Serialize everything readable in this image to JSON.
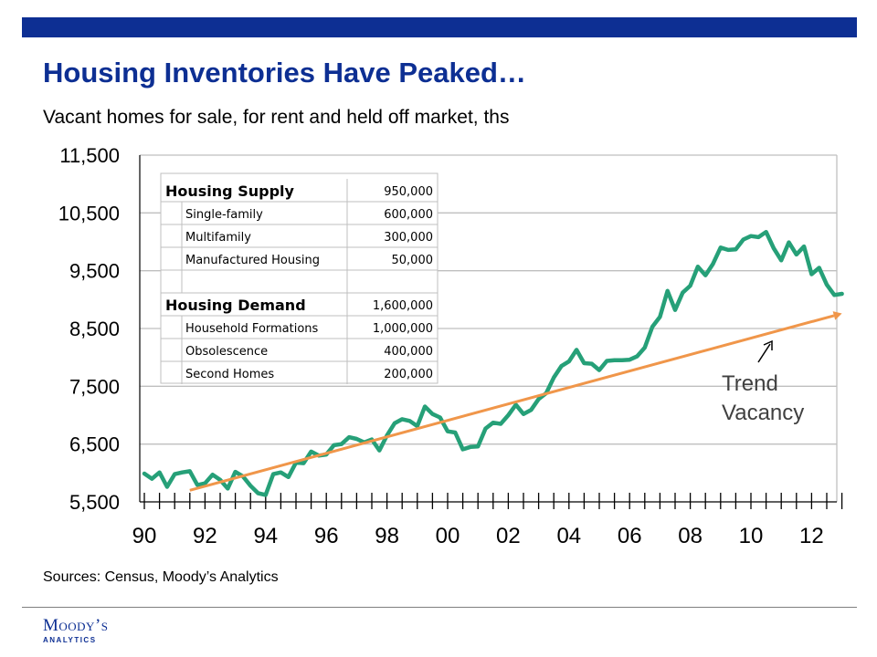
{
  "title": "Housing Inventories Have Peaked…",
  "subtitle": "Vacant homes for sale, for rent and held off market, ths",
  "sources": "Sources: Census, Moody’s Analytics",
  "logo": {
    "main": "Moody’s",
    "sub": "ANALYTICS"
  },
  "colors": {
    "brand": "#0d2f93",
    "series": "#26a078",
    "trend": "#f0964a",
    "grid": "#bfbfbf"
  },
  "trend_label": [
    "Trend",
    "Vacancy"
  ],
  "table": {
    "rows": [
      {
        "label": "Housing Supply",
        "value": "950,000",
        "heading": true
      },
      {
        "label": "Single-family",
        "value": "600,000",
        "heading": false
      },
      {
        "label": "Multifamily",
        "value": "300,000",
        "heading": false
      },
      {
        "label": "Manufactured Housing",
        "value": "50,000",
        "heading": false
      },
      {
        "label": "",
        "value": "",
        "heading": false
      },
      {
        "label": "Housing Demand",
        "value": "1,600,000",
        "heading": true
      },
      {
        "label": "Household Formations",
        "value": "1,000,000",
        "heading": false
      },
      {
        "label": "Obsolescence",
        "value": "400,000",
        "heading": false
      },
      {
        "label": "Second Homes",
        "value": "200,000",
        "heading": false
      }
    ]
  },
  "chart_data": {
    "type": "line",
    "title": "",
    "xlabel": "",
    "ylabel": "",
    "ylim": [
      5500,
      11500
    ],
    "xlim": [
      1990,
      2012.75
    ],
    "yticks": [
      5500,
      6500,
      7500,
      8500,
      9500,
      10500,
      11500
    ],
    "ytick_labels": [
      "5,500",
      "6,500",
      "7,500",
      "8,500",
      "9,500",
      "10,500",
      "11,500"
    ],
    "xticks": [
      1990,
      1992,
      1994,
      1996,
      1998,
      2000,
      2002,
      2004,
      2006,
      2008,
      2010,
      2012
    ],
    "xtick_labels": [
      "90",
      "92",
      "94",
      "96",
      "98",
      "00",
      "02",
      "04",
      "06",
      "08",
      "10",
      "12"
    ],
    "grid": true,
    "series": [
      {
        "values": [
          [
            1990.0,
            5990
          ],
          [
            1990.25,
            5900
          ],
          [
            1990.5,
            6010
          ],
          [
            1990.75,
            5760
          ],
          [
            1991.0,
            5980
          ],
          [
            1991.25,
            6010
          ],
          [
            1991.5,
            6030
          ],
          [
            1991.75,
            5790
          ],
          [
            1992.0,
            5820
          ],
          [
            1992.25,
            5970
          ],
          [
            1992.5,
            5880
          ],
          [
            1992.75,
            5730
          ],
          [
            1993.0,
            6020
          ],
          [
            1993.25,
            5940
          ],
          [
            1993.5,
            5780
          ],
          [
            1993.75,
            5650
          ],
          [
            1994.0,
            5620
          ],
          [
            1994.25,
            5980
          ],
          [
            1994.5,
            6010
          ],
          [
            1994.75,
            5930
          ],
          [
            1995.0,
            6180
          ],
          [
            1995.25,
            6170
          ],
          [
            1995.5,
            6370
          ],
          [
            1995.75,
            6300
          ],
          [
            1996.0,
            6320
          ],
          [
            1996.25,
            6480
          ],
          [
            1996.5,
            6500
          ],
          [
            1996.75,
            6620
          ],
          [
            1997.0,
            6590
          ],
          [
            1997.25,
            6530
          ],
          [
            1997.5,
            6580
          ],
          [
            1997.75,
            6390
          ],
          [
            1998.0,
            6650
          ],
          [
            1998.25,
            6860
          ],
          [
            1998.5,
            6930
          ],
          [
            1998.75,
            6900
          ],
          [
            1999.0,
            6810
          ],
          [
            1999.25,
            7150
          ],
          [
            1999.5,
            7020
          ],
          [
            1999.75,
            6960
          ],
          [
            2000.0,
            6720
          ],
          [
            2000.25,
            6700
          ],
          [
            2000.5,
            6410
          ],
          [
            2000.75,
            6450
          ],
          [
            2001.0,
            6460
          ],
          [
            2001.25,
            6770
          ],
          [
            2001.5,
            6870
          ],
          [
            2001.75,
            6850
          ],
          [
            2002.0,
            7000
          ],
          [
            2002.25,
            7180
          ],
          [
            2002.5,
            7020
          ],
          [
            2002.75,
            7090
          ],
          [
            2003.0,
            7280
          ],
          [
            2003.25,
            7380
          ],
          [
            2003.5,
            7650
          ],
          [
            2003.75,
            7850
          ],
          [
            2004.0,
            7930
          ],
          [
            2004.25,
            8130
          ],
          [
            2004.5,
            7900
          ],
          [
            2004.75,
            7890
          ],
          [
            2005.0,
            7780
          ],
          [
            2005.25,
            7940
          ],
          [
            2005.5,
            7950
          ],
          [
            2005.75,
            7950
          ],
          [
            2006.0,
            7960
          ],
          [
            2006.25,
            8020
          ],
          [
            2006.5,
            8170
          ],
          [
            2006.75,
            8530
          ],
          [
            2007.0,
            8700
          ],
          [
            2007.25,
            9150
          ],
          [
            2007.5,
            8820
          ],
          [
            2007.75,
            9120
          ],
          [
            2008.0,
            9240
          ],
          [
            2008.25,
            9570
          ],
          [
            2008.5,
            9420
          ],
          [
            2008.75,
            9620
          ],
          [
            2009.0,
            9900
          ],
          [
            2009.25,
            9860
          ],
          [
            2009.5,
            9870
          ],
          [
            2009.75,
            10040
          ],
          [
            2010.0,
            10100
          ],
          [
            2010.25,
            10080
          ],
          [
            2010.5,
            10170
          ],
          [
            2010.75,
            9890
          ],
          [
            2011.0,
            9680
          ],
          [
            2011.25,
            9990
          ],
          [
            2011.5,
            9780
          ],
          [
            2011.75,
            9920
          ],
          [
            2012.0,
            9440
          ],
          [
            2012.25,
            9550
          ],
          [
            2012.5,
            9260
          ],
          [
            2012.75,
            9080
          ],
          [
            2013.0,
            9100
          ]
        ]
      },
      {
        "values": [
          [
            1991.5,
            5700
          ],
          [
            2013.0,
            8760
          ]
        ]
      }
    ]
  }
}
